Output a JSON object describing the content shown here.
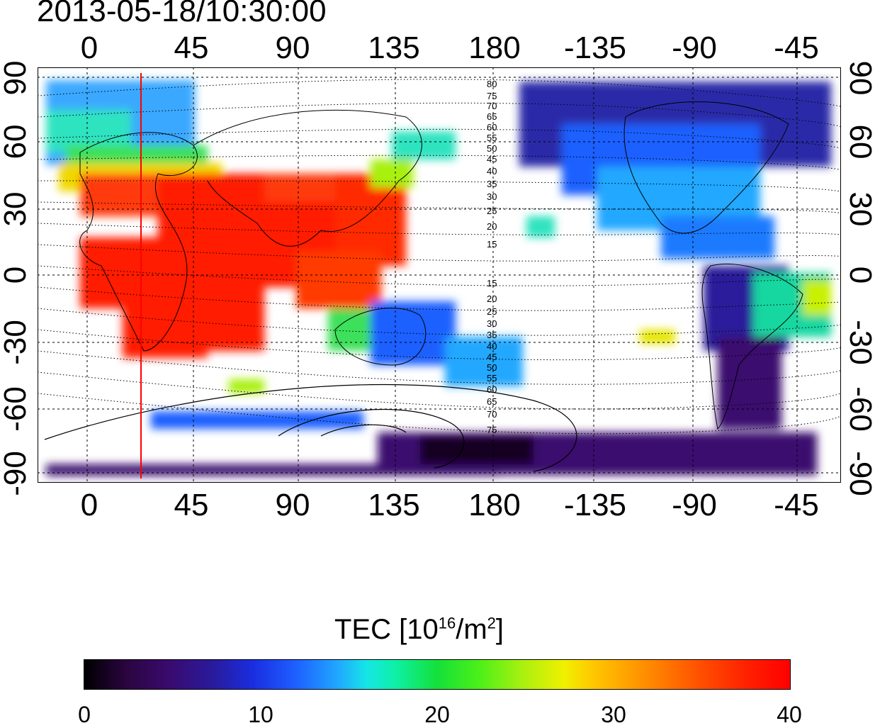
{
  "title": "2013-05-18/10:30:00",
  "axes": {
    "lon_ticks": [
      "0",
      "45",
      "90",
      "135",
      "180",
      "-135",
      "-90",
      "-45"
    ],
    "lat_ticks": [
      "90",
      "60",
      "30",
      "0",
      "-30",
      "-60",
      "-90"
    ]
  },
  "contour_labels": {
    "north": [
      "80",
      "75",
      "70",
      "65",
      "60",
      "55",
      "50",
      "45",
      "40",
      "35",
      "30",
      "25",
      "20",
      "15"
    ],
    "south": [
      "15",
      "20",
      "25",
      "30",
      "35",
      "40",
      "45",
      "50",
      "55",
      "60",
      "65",
      "70",
      "75"
    ]
  },
  "terminator_longitude": 22,
  "colors": {
    "terminator": "#ff0000",
    "frame": "#000000",
    "background": "#ffffff"
  },
  "colorbar": {
    "title": "TEC  [10",
    "title_exp": "16",
    "title_unit": "/m",
    "title_unit_exp": "2",
    "title_close": "]",
    "ticks": [
      "0",
      "10",
      "20",
      "30",
      "40"
    ],
    "range": [
      0,
      40
    ]
  }
}
